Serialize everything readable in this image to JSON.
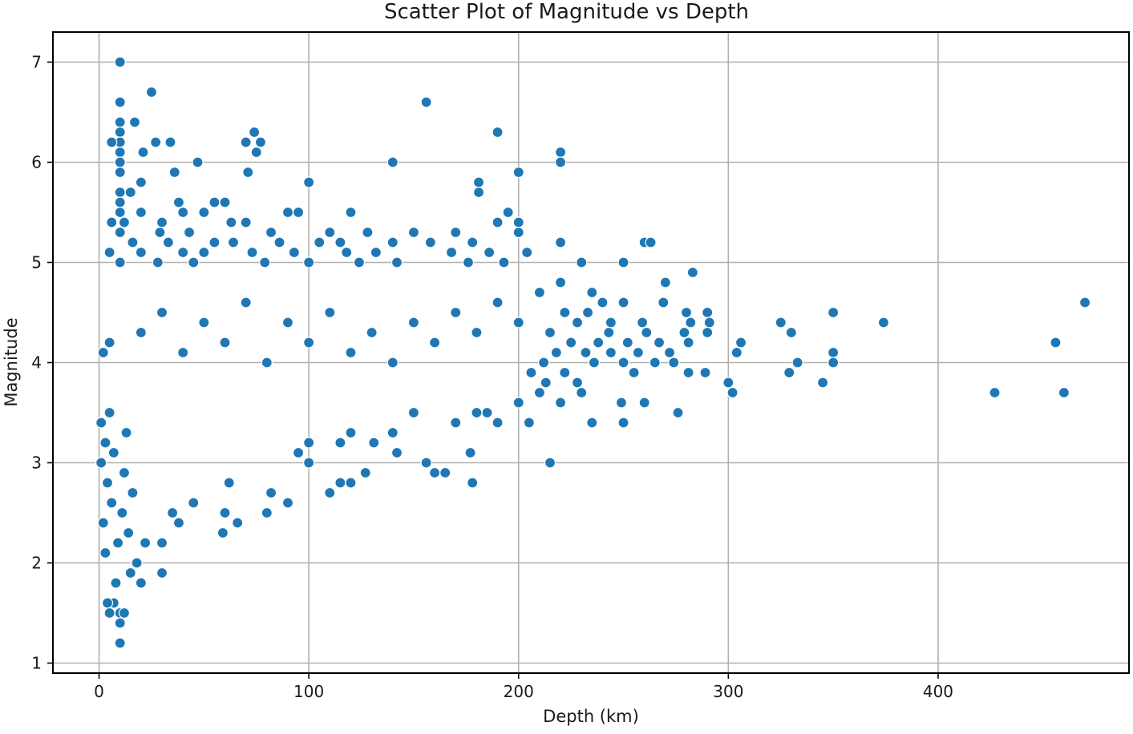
{
  "chart_data": {
    "type": "scatter",
    "title": "Scatter Plot of Magnitude vs Depth",
    "xlabel": "Depth (km)",
    "ylabel": "Magnitude",
    "xlim": [
      -22,
      491
    ],
    "ylim": [
      0.9,
      7.3
    ],
    "xticks": [
      0,
      100,
      200,
      300,
      400
    ],
    "yticks": [
      1,
      2,
      3,
      4,
      5,
      6,
      7
    ],
    "grid": true,
    "marker_color": "#1f77b4",
    "marker_edge_color": "#ffffff",
    "points": [
      [
        10,
        7.0
      ],
      [
        25,
        6.7
      ],
      [
        10,
        6.6
      ],
      [
        156,
        6.6
      ],
      [
        17,
        6.4
      ],
      [
        10,
        6.4
      ],
      [
        10,
        6.3
      ],
      [
        74,
        6.3
      ],
      [
        190,
        6.3
      ],
      [
        10,
        6.2
      ],
      [
        6,
        6.2
      ],
      [
        27,
        6.2
      ],
      [
        34,
        6.2
      ],
      [
        70,
        6.2
      ],
      [
        77,
        6.2
      ],
      [
        10,
        6.1
      ],
      [
        21,
        6.1
      ],
      [
        75,
        6.1
      ],
      [
        220,
        6.1
      ],
      [
        10,
        6.0
      ],
      [
        47,
        6.0
      ],
      [
        140,
        6.0
      ],
      [
        220,
        6.0
      ],
      [
        10,
        5.9
      ],
      [
        36,
        5.9
      ],
      [
        71,
        5.9
      ],
      [
        200,
        5.9
      ],
      [
        20,
        5.8
      ],
      [
        100,
        5.8
      ],
      [
        181,
        5.8
      ],
      [
        10,
        5.7
      ],
      [
        15,
        5.7
      ],
      [
        181,
        5.7
      ],
      [
        10,
        5.6
      ],
      [
        38,
        5.6
      ],
      [
        55,
        5.6
      ],
      [
        60,
        5.6
      ],
      [
        10,
        5.5
      ],
      [
        20,
        5.5
      ],
      [
        40,
        5.5
      ],
      [
        50,
        5.5
      ],
      [
        90,
        5.5
      ],
      [
        95,
        5.5
      ],
      [
        120,
        5.5
      ],
      [
        195,
        5.5
      ],
      [
        6,
        5.4
      ],
      [
        12,
        5.4
      ],
      [
        30,
        5.4
      ],
      [
        63,
        5.4
      ],
      [
        70,
        5.4
      ],
      [
        190,
        5.4
      ],
      [
        200,
        5.4
      ],
      [
        10,
        5.3
      ],
      [
        29,
        5.3
      ],
      [
        43,
        5.3
      ],
      [
        82,
        5.3
      ],
      [
        110,
        5.3
      ],
      [
        128,
        5.3
      ],
      [
        150,
        5.3
      ],
      [
        170,
        5.3
      ],
      [
        200,
        5.3
      ],
      [
        16,
        5.2
      ],
      [
        33,
        5.2
      ],
      [
        55,
        5.2
      ],
      [
        64,
        5.2
      ],
      [
        86,
        5.2
      ],
      [
        105,
        5.2
      ],
      [
        115,
        5.2
      ],
      [
        140,
        5.2
      ],
      [
        158,
        5.2
      ],
      [
        178,
        5.2
      ],
      [
        220,
        5.2
      ],
      [
        260,
        5.2
      ],
      [
        263,
        5.2
      ],
      [
        5,
        5.1
      ],
      [
        20,
        5.1
      ],
      [
        40,
        5.1
      ],
      [
        50,
        5.1
      ],
      [
        73,
        5.1
      ],
      [
        93,
        5.1
      ],
      [
        118,
        5.1
      ],
      [
        132,
        5.1
      ],
      [
        168,
        5.1
      ],
      [
        186,
        5.1
      ],
      [
        204,
        5.1
      ],
      [
        10,
        5.0
      ],
      [
        28,
        5.0
      ],
      [
        45,
        5.0
      ],
      [
        79,
        5.0
      ],
      [
        100,
        5.0
      ],
      [
        124,
        5.0
      ],
      [
        142,
        5.0
      ],
      [
        176,
        5.0
      ],
      [
        193,
        5.0
      ],
      [
        230,
        5.0
      ],
      [
        250,
        5.0
      ],
      [
        283,
        4.9
      ],
      [
        270,
        4.8
      ],
      [
        220,
        4.8
      ],
      [
        235,
        4.7
      ],
      [
        210,
        4.7
      ],
      [
        240,
        4.6
      ],
      [
        250,
        4.6
      ],
      [
        269,
        4.6
      ],
      [
        222,
        4.5
      ],
      [
        233,
        4.5
      ],
      [
        280,
        4.5
      ],
      [
        290,
        4.5
      ],
      [
        350,
        4.5
      ],
      [
        470,
        4.6
      ],
      [
        228,
        4.4
      ],
      [
        244,
        4.4
      ],
      [
        259,
        4.4
      ],
      [
        282,
        4.4
      ],
      [
        291,
        4.4
      ],
      [
        325,
        4.4
      ],
      [
        374,
        4.4
      ],
      [
        215,
        4.3
      ],
      [
        243,
        4.3
      ],
      [
        261,
        4.3
      ],
      [
        279,
        4.3
      ],
      [
        290,
        4.3
      ],
      [
        330,
        4.3
      ],
      [
        225,
        4.2
      ],
      [
        238,
        4.2
      ],
      [
        252,
        4.2
      ],
      [
        267,
        4.2
      ],
      [
        281,
        4.2
      ],
      [
        306,
        4.2
      ],
      [
        456,
        4.2
      ],
      [
        218,
        4.1
      ],
      [
        232,
        4.1
      ],
      [
        244,
        4.1
      ],
      [
        257,
        4.1
      ],
      [
        272,
        4.1
      ],
      [
        304,
        4.1
      ],
      [
        350,
        4.1
      ],
      [
        212,
        4.0
      ],
      [
        236,
        4.0
      ],
      [
        250,
        4.0
      ],
      [
        265,
        4.0
      ],
      [
        274,
        4.0
      ],
      [
        333,
        4.0
      ],
      [
        350,
        4.0
      ],
      [
        206,
        3.9
      ],
      [
        222,
        3.9
      ],
      [
        255,
        3.9
      ],
      [
        281,
        3.9
      ],
      [
        289,
        3.9
      ],
      [
        329,
        3.9
      ],
      [
        213,
        3.8
      ],
      [
        228,
        3.8
      ],
      [
        300,
        3.8
      ],
      [
        345,
        3.8
      ],
      [
        210,
        3.7
      ],
      [
        230,
        3.7
      ],
      [
        302,
        3.7
      ],
      [
        427,
        3.7
      ],
      [
        460,
        3.7
      ],
      [
        200,
        3.6
      ],
      [
        220,
        3.6
      ],
      [
        249,
        3.6
      ],
      [
        260,
        3.6
      ],
      [
        276,
        3.5
      ],
      [
        180,
        3.5
      ],
      [
        185,
        3.5
      ],
      [
        150,
        3.5
      ],
      [
        170,
        3.4
      ],
      [
        190,
        3.4
      ],
      [
        205,
        3.4
      ],
      [
        235,
        3.4
      ],
      [
        250,
        3.4
      ],
      [
        140,
        3.3
      ],
      [
        120,
        3.3
      ],
      [
        100,
        3.2
      ],
      [
        115,
        3.2
      ],
      [
        131,
        3.2
      ],
      [
        177,
        3.1
      ],
      [
        142,
        3.1
      ],
      [
        95,
        3.1
      ],
      [
        156,
        3.0
      ],
      [
        215,
        3.0
      ],
      [
        100,
        3.0
      ],
      [
        160,
        2.9
      ],
      [
        165,
        2.9
      ],
      [
        127,
        2.9
      ],
      [
        120,
        2.8
      ],
      [
        115,
        2.8
      ],
      [
        178,
        2.8
      ],
      [
        62,
        2.8
      ],
      [
        110,
        2.7
      ],
      [
        82,
        2.7
      ],
      [
        45,
        2.6
      ],
      [
        90,
        2.6
      ],
      [
        60,
        2.5
      ],
      [
        80,
        2.5
      ],
      [
        35,
        2.5
      ],
      [
        66,
        2.4
      ],
      [
        38,
        2.4
      ],
      [
        59,
        2.3
      ],
      [
        30,
        2.2
      ],
      [
        22,
        2.2
      ],
      [
        20,
        1.8
      ],
      [
        30,
        1.9
      ],
      [
        10,
        1.5
      ],
      [
        10,
        1.4
      ],
      [
        10,
        1.2
      ],
      [
        7,
        1.6
      ],
      [
        4,
        1.6
      ],
      [
        12,
        1.5
      ],
      [
        5,
        1.5
      ],
      [
        8,
        1.8
      ],
      [
        15,
        1.9
      ],
      [
        18,
        2.0
      ],
      [
        3,
        2.1
      ],
      [
        9,
        2.2
      ],
      [
        14,
        2.3
      ],
      [
        2,
        2.4
      ],
      [
        11,
        2.5
      ],
      [
        6,
        2.6
      ],
      [
        16,
        2.7
      ],
      [
        4,
        2.8
      ],
      [
        12,
        2.9
      ],
      [
        1,
        3.0
      ],
      [
        7,
        3.1
      ],
      [
        3,
        3.2
      ],
      [
        13,
        3.3
      ],
      [
        1,
        3.4
      ],
      [
        5,
        3.5
      ],
      [
        2,
        4.1
      ],
      [
        5,
        4.2
      ],
      [
        200,
        4.4
      ],
      [
        190,
        4.6
      ],
      [
        180,
        4.3
      ],
      [
        170,
        4.5
      ],
      [
        160,
        4.2
      ],
      [
        150,
        4.4
      ],
      [
        140,
        4.0
      ],
      [
        130,
        4.3
      ],
      [
        120,
        4.1
      ],
      [
        110,
        4.5
      ],
      [
        100,
        4.2
      ],
      [
        90,
        4.4
      ],
      [
        80,
        4.0
      ],
      [
        70,
        4.6
      ],
      [
        60,
        4.2
      ],
      [
        50,
        4.4
      ],
      [
        40,
        4.1
      ],
      [
        30,
        4.5
      ],
      [
        20,
        4.3
      ]
    ]
  }
}
